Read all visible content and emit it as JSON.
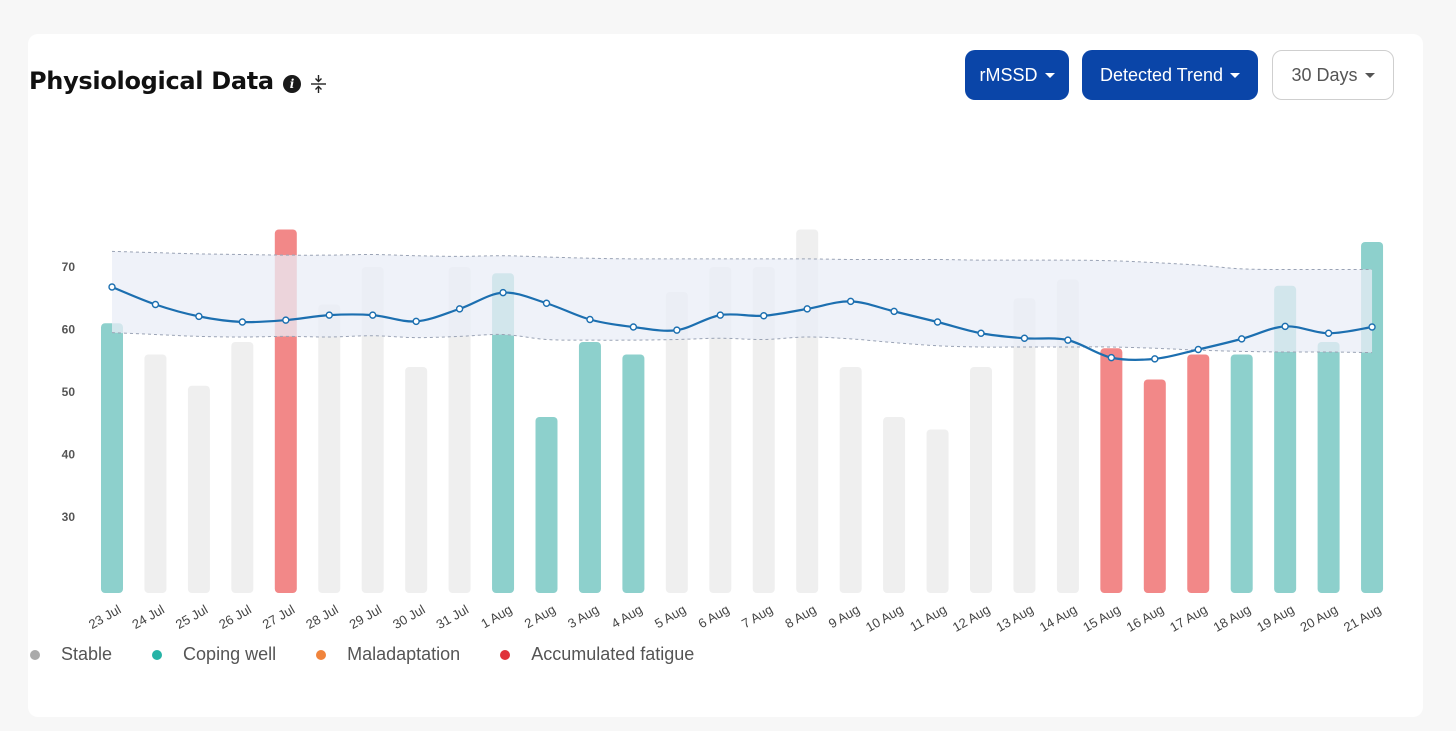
{
  "header": {
    "title": "Physiological Data",
    "info_icon": "info-icon",
    "collapse_icon": "collapse-vertical-icon"
  },
  "controls": {
    "metric_label": "rMSSD",
    "trend_label": "Detected Trend",
    "range_label": "30 Days"
  },
  "colors": {
    "primary_button": "#0a45a8",
    "stable": "#efefef",
    "coping_well": "#8dd0cc",
    "accumulated_fatigue": "#f28888",
    "trend_line": "#1c6fb0",
    "band_fill": "#e9edf7"
  },
  "legend": [
    {
      "label": "Stable",
      "color": "#aaaaaa"
    },
    {
      "label": "Coping well",
      "color": "#26b3a6"
    },
    {
      "label": "Maladaptation",
      "color": "#f0843c"
    },
    {
      "label": "Accumulated fatigue",
      "color": "#e0313a"
    }
  ],
  "chart_data": {
    "type": "bar",
    "categories": [
      "23 Jul",
      "24 Jul",
      "25 Jul",
      "26 Jul",
      "27 Jul",
      "28 Jul",
      "29 Jul",
      "30 Jul",
      "31 Jul",
      "1 Aug",
      "2 Aug",
      "3 Aug",
      "4 Aug",
      "5 Aug",
      "6 Aug",
      "7 Aug",
      "8 Aug",
      "9 Aug",
      "10 Aug",
      "11 Aug",
      "12 Aug",
      "13 Aug",
      "14 Aug",
      "15 Aug",
      "16 Aug",
      "17 Aug",
      "18 Aug",
      "19 Aug",
      "20 Aug",
      "21 Aug"
    ],
    "values": [
      61,
      56,
      51,
      58,
      76,
      64,
      70,
      54,
      70,
      69,
      46,
      58,
      56,
      66,
      70,
      70,
      76,
      54,
      46,
      44,
      54,
      65,
      68,
      57,
      52,
      56,
      56,
      67,
      58,
      74
    ],
    "status": [
      "Coping well",
      "Stable",
      "Stable",
      "Stable",
      "Accumulated fatigue",
      "Stable",
      "Stable",
      "Stable",
      "Stable",
      "Coping well",
      "Coping well",
      "Coping well",
      "Coping well",
      "Stable",
      "Stable",
      "Stable",
      "Stable",
      "Stable",
      "Stable",
      "Stable",
      "Stable",
      "Stable",
      "Stable",
      "Accumulated fatigue",
      "Accumulated fatigue",
      "Accumulated fatigue",
      "Coping well",
      "Coping well",
      "Coping well",
      "Coping well"
    ],
    "series": [
      {
        "values": [
          66.8,
          64,
          62.1,
          61.2,
          61.5,
          62.3,
          62.3,
          61.3,
          63.3,
          65.9,
          64.2,
          61.6,
          60.4,
          59.9,
          62.3,
          62.2,
          63.3,
          64.5,
          62.9,
          61.2,
          59.4,
          58.6,
          58.3,
          55.5,
          55.3,
          56.8,
          58.5,
          60.5,
          59.4,
          60.4
        ]
      },
      {
        "values": [
          72.5,
          72.3,
          72.1,
          72,
          71.9,
          71.9,
          72,
          71.8,
          71.7,
          71.8,
          71.6,
          71.4,
          71.3,
          71.3,
          71.3,
          71.3,
          71.3,
          71.2,
          71.2,
          71.2,
          71.1,
          71.1,
          71.1,
          71,
          70.7,
          70.3,
          69.7,
          69.6,
          69.6,
          69.6
        ]
      },
      {
        "values": [
          59.5,
          59.2,
          58.9,
          58.8,
          58.9,
          58.8,
          59,
          58.7,
          58.9,
          59.2,
          58.4,
          58.3,
          58.3,
          58.4,
          58.6,
          58.4,
          58.8,
          58.5,
          57.9,
          57.4,
          57.2,
          57.2,
          57.2,
          57.2,
          57,
          56.7,
          56.5,
          56.4,
          56.4,
          56.3
        ]
      }
    ],
    "yticks": [
      30,
      40,
      50,
      60,
      70
    ],
    "ylim": [
      18,
      80
    ],
    "grid": false
  }
}
